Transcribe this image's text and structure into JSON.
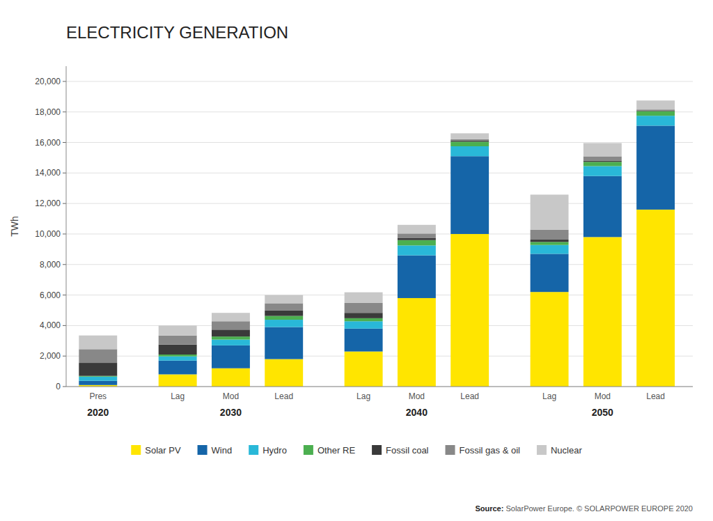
{
  "chart_data": {
    "type": "bar",
    "stacked": true,
    "title": "ELECTRICITY GENERATION",
    "ylabel": "TWh",
    "categories": [
      "Pres",
      "Lag",
      "Mod",
      "Lead",
      "Lag",
      "Mod",
      "Lead",
      "Lag",
      "Mod",
      "Lead"
    ],
    "annotations": [
      "2020",
      "2030",
      "2040",
      "2050"
    ],
    "source": [
      "Source:",
      " SolarPower Europe. © SOLARPOWER EUROPE 2020"
    ],
    "series": [
      {
        "name": "Solar PV",
        "color": "#FFE500",
        "values": [
          100,
          800,
          1200,
          1800,
          2300,
          5800,
          10000,
          6200,
          9800,
          11600
        ]
      },
      {
        "name": "Wind",
        "color": "#1565A8",
        "values": [
          280,
          900,
          1500,
          2100,
          1500,
          2800,
          5100,
          2500,
          4000,
          5500
        ]
      },
      {
        "name": "Hydro",
        "color": "#29B8D8",
        "values": [
          270,
          280,
          380,
          480,
          480,
          650,
          650,
          580,
          650,
          650
        ]
      },
      {
        "name": "Other RE",
        "color": "#4CAF50",
        "values": [
          50,
          120,
          200,
          250,
          200,
          350,
          300,
          200,
          280,
          300
        ]
      },
      {
        "name": "Fossil coal",
        "color": "#3A3A3A",
        "values": [
          850,
          650,
          450,
          350,
          350,
          150,
          80,
          150,
          80,
          30
        ]
      },
      {
        "name": "Fossil gas & oil",
        "color": "#888888",
        "values": [
          900,
          600,
          550,
          480,
          650,
          280,
          80,
          650,
          280,
          80
        ]
      },
      {
        "name": "Nuclear",
        "color": "#C8C8C8",
        "values": [
          900,
          650,
          550,
          540,
          700,
          570,
          390,
          2300,
          870,
          590
        ]
      }
    ],
    "ylim": [
      0,
      21000
    ],
    "yticks": [
      0,
      {
        "value": 2000,
        "label": "2,000"
      },
      {
        "value": 4000,
        "label": "4,000"
      },
      {
        "value": 6000,
        "label": "6,000"
      },
      {
        "value": 8000,
        "label": "8,000"
      },
      {
        "value": 10000,
        "label": "10,000"
      },
      {
        "value": 12000,
        "label": "12,000"
      },
      {
        "value": 14000,
        "label": "14,000"
      },
      {
        "value": 16000,
        "label": "16,000"
      },
      {
        "value": 18000,
        "label": "18,000"
      },
      {
        "value": 20000,
        "label": "20,000"
      }
    ],
    "grid": true,
    "legend": "bottom"
  }
}
